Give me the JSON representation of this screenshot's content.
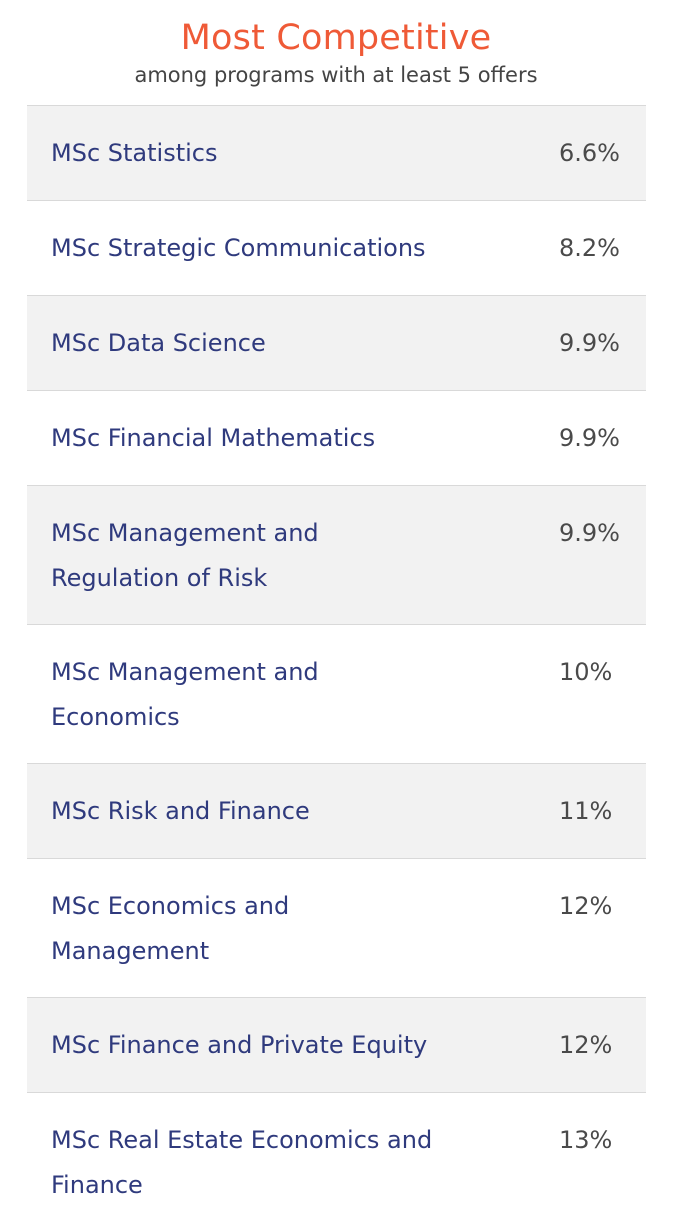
{
  "header": {
    "title": "Most Competitive",
    "subtitle": "among programs with at least 5 offers"
  },
  "colors": {
    "title": "#ef5a37",
    "program_name": "#2f3a7d",
    "rate": "#4a4a4a",
    "row_shade": "#f2f2f2",
    "divider": "#d9d9d9"
  },
  "programs": [
    {
      "name": "MSc Statistics",
      "rate": "6.6%"
    },
    {
      "name": "MSc Strategic Communications",
      "rate": "8.2%"
    },
    {
      "name": "MSc Data Science",
      "rate": "9.9%"
    },
    {
      "name": "MSc Financial Mathematics",
      "rate": "9.9%"
    },
    {
      "name": "MSc Management and Regulation of Risk",
      "rate": "9.9%"
    },
    {
      "name": "MSc Management and Economics",
      "rate": "10%"
    },
    {
      "name": "MSc Risk and Finance",
      "rate": "11%"
    },
    {
      "name": "MSc Economics and Management",
      "rate": "12%"
    },
    {
      "name": "MSc Finance and Private Equity",
      "rate": "12%"
    },
    {
      "name": "MSc Real Estate Economics and Finance",
      "rate": "13%"
    }
  ]
}
